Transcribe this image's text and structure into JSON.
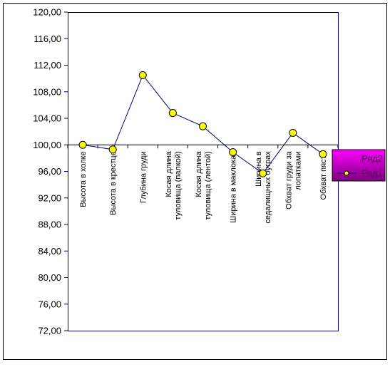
{
  "chart_data": {
    "type": "line",
    "title": "",
    "xlabel": "",
    "ylabel": "",
    "ylim": [
      72,
      120
    ],
    "yticks": [
      "72,00",
      "76,00",
      "80,00",
      "84,00",
      "88,00",
      "92,00",
      "96,00",
      "100,00",
      "104,00",
      "108,00",
      "112,00",
      "116,00",
      "120,00"
    ],
    "categories": [
      "Высота в холке",
      "Высота в крестце",
      "Глубина груди",
      "Косая длина туловища (палкой)",
      "Косая длина туловища (лентой)",
      "Ширина в маклоках",
      "Ширина в седалищных буграх",
      "Обхват груди за лопатками",
      "Обхват пясти"
    ],
    "category_lines": [
      [
        "Высота в холке"
      ],
      [
        "Высота в крестце"
      ],
      [
        "Глубина груди"
      ],
      [
        "Косая длина",
        "туловища (палкой)"
      ],
      [
        "Косая длина",
        "туловища (лентой)"
      ],
      [
        "Ширина в маклоках"
      ],
      [
        "Ширина в",
        "седалищных буграх"
      ],
      [
        "Обхват груди за",
        "лопатками"
      ],
      [
        "Обхват пясти"
      ]
    ],
    "series": [
      {
        "name": "Ряд1",
        "values": [
          100.0,
          99.3,
          110.5,
          104.8,
          102.8,
          98.9,
          95.7,
          101.8,
          98.6
        ],
        "color": "#ffff00",
        "line_color": "#000080"
      },
      {
        "name": "Ряд2",
        "values": [
          100,
          100,
          100,
          100,
          100,
          100,
          100,
          100,
          100
        ],
        "color": "#000000"
      }
    ],
    "legend": {
      "position": "right",
      "background": "#ff00ff"
    },
    "grid": false
  }
}
